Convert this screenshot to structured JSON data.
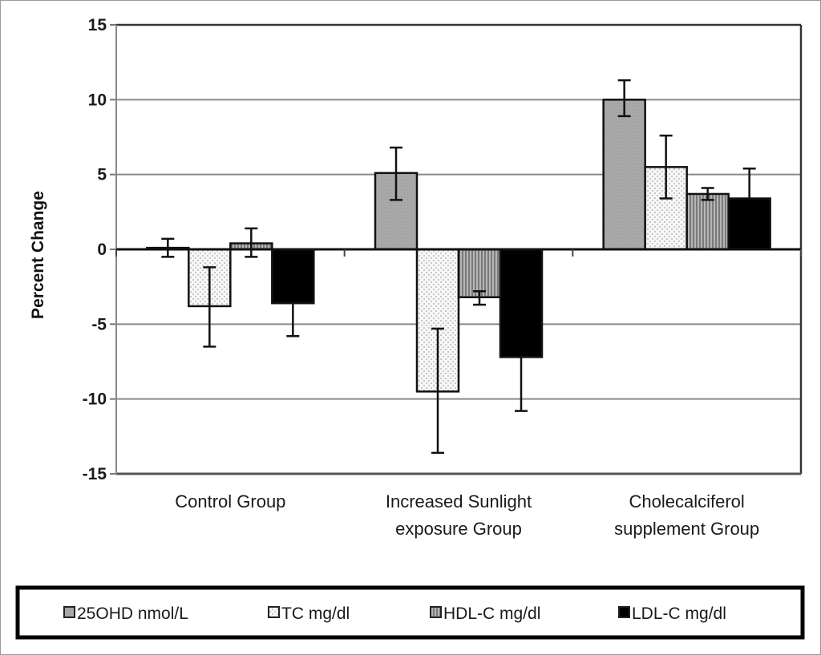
{
  "chart_data": {
    "type": "bar",
    "title": "",
    "xlabel": "",
    "ylabel": "Percent Change",
    "ylim": [
      -15,
      15
    ],
    "yticks": [
      15,
      10,
      5,
      0,
      -5,
      -10,
      -15
    ],
    "grid": true,
    "legend_position": "bottom",
    "categories": [
      [
        "Control Group"
      ],
      [
        "Increased Sunlight",
        "exposure Group"
      ],
      [
        "Cholecalciferol",
        "supplement Group"
      ]
    ],
    "series": [
      {
        "name": "25OHD nmol/L",
        "pattern": "gray-solid",
        "color": "#a6a6a6",
        "values": [
          0.1,
          5.1,
          10.0
        ],
        "error_high": [
          0.7,
          6.8,
          11.3
        ],
        "error_low": [
          -0.5,
          3.3,
          8.9
        ]
      },
      {
        "name": "TC mg/dl",
        "pattern": "dotted-light",
        "color": "#f2f2f2",
        "values": [
          -3.8,
          -9.5,
          5.5
        ],
        "error_high": [
          -1.2,
          -5.3,
          7.6
        ],
        "error_low": [
          -6.5,
          -13.6,
          3.4
        ]
      },
      {
        "name": "HDL-C mg/dl",
        "pattern": "vertical-stripes",
        "color": "#8c8c8c",
        "values": [
          0.4,
          -3.2,
          3.7
        ],
        "error_high": [
          1.4,
          -2.8,
          4.1
        ],
        "error_low": [
          -0.5,
          -3.7,
          3.3
        ]
      },
      {
        "name": "LDL-C mg/dl",
        "pattern": "black-solid",
        "color": "#000000",
        "values": [
          -3.6,
          -7.2,
          3.4
        ],
        "error_high": [
          -3.6,
          -7.2,
          5.4
        ],
        "error_low": [
          -5.8,
          -10.8,
          3.4
        ]
      }
    ]
  }
}
